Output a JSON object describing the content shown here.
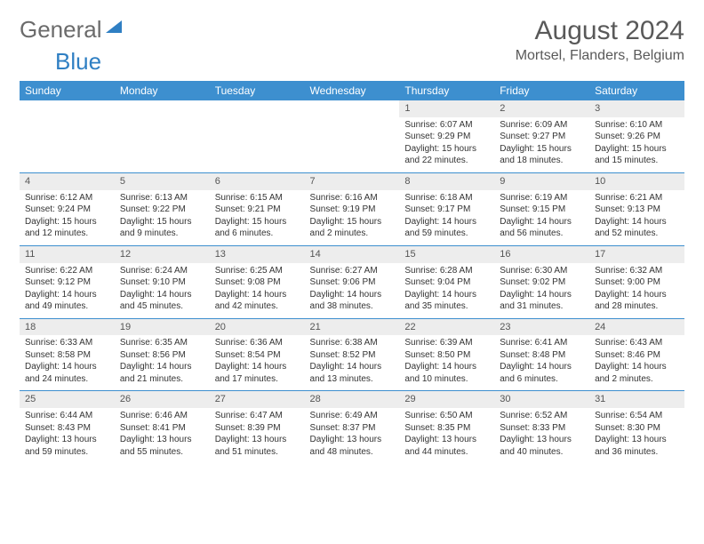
{
  "logo": {
    "part1": "General",
    "part2": "Blue"
  },
  "title": "August 2024",
  "location": "Mortsel, Flanders, Belgium",
  "colors": {
    "header_bg": "#3d8fcf",
    "header_text": "#ffffff",
    "daynum_bg": "#ededed",
    "row_border": "#3d8fcf",
    "text": "#333333",
    "title_text": "#595959"
  },
  "day_headers": [
    "Sunday",
    "Monday",
    "Tuesday",
    "Wednesday",
    "Thursday",
    "Friday",
    "Saturday"
  ],
  "weeks": [
    [
      {
        "empty": true
      },
      {
        "empty": true
      },
      {
        "empty": true
      },
      {
        "empty": true
      },
      {
        "day": "1",
        "sunrise": "6:07 AM",
        "sunset": "9:29 PM",
        "daylight": "15 hours and 22 minutes."
      },
      {
        "day": "2",
        "sunrise": "6:09 AM",
        "sunset": "9:27 PM",
        "daylight": "15 hours and 18 minutes."
      },
      {
        "day": "3",
        "sunrise": "6:10 AM",
        "sunset": "9:26 PM",
        "daylight": "15 hours and 15 minutes."
      }
    ],
    [
      {
        "day": "4",
        "sunrise": "6:12 AM",
        "sunset": "9:24 PM",
        "daylight": "15 hours and 12 minutes."
      },
      {
        "day": "5",
        "sunrise": "6:13 AM",
        "sunset": "9:22 PM",
        "daylight": "15 hours and 9 minutes."
      },
      {
        "day": "6",
        "sunrise": "6:15 AM",
        "sunset": "9:21 PM",
        "daylight": "15 hours and 6 minutes."
      },
      {
        "day": "7",
        "sunrise": "6:16 AM",
        "sunset": "9:19 PM",
        "daylight": "15 hours and 2 minutes."
      },
      {
        "day": "8",
        "sunrise": "6:18 AM",
        "sunset": "9:17 PM",
        "daylight": "14 hours and 59 minutes."
      },
      {
        "day": "9",
        "sunrise": "6:19 AM",
        "sunset": "9:15 PM",
        "daylight": "14 hours and 56 minutes."
      },
      {
        "day": "10",
        "sunrise": "6:21 AM",
        "sunset": "9:13 PM",
        "daylight": "14 hours and 52 minutes."
      }
    ],
    [
      {
        "day": "11",
        "sunrise": "6:22 AM",
        "sunset": "9:12 PM",
        "daylight": "14 hours and 49 minutes."
      },
      {
        "day": "12",
        "sunrise": "6:24 AM",
        "sunset": "9:10 PM",
        "daylight": "14 hours and 45 minutes."
      },
      {
        "day": "13",
        "sunrise": "6:25 AM",
        "sunset": "9:08 PM",
        "daylight": "14 hours and 42 minutes."
      },
      {
        "day": "14",
        "sunrise": "6:27 AM",
        "sunset": "9:06 PM",
        "daylight": "14 hours and 38 minutes."
      },
      {
        "day": "15",
        "sunrise": "6:28 AM",
        "sunset": "9:04 PM",
        "daylight": "14 hours and 35 minutes."
      },
      {
        "day": "16",
        "sunrise": "6:30 AM",
        "sunset": "9:02 PM",
        "daylight": "14 hours and 31 minutes."
      },
      {
        "day": "17",
        "sunrise": "6:32 AM",
        "sunset": "9:00 PM",
        "daylight": "14 hours and 28 minutes."
      }
    ],
    [
      {
        "day": "18",
        "sunrise": "6:33 AM",
        "sunset": "8:58 PM",
        "daylight": "14 hours and 24 minutes."
      },
      {
        "day": "19",
        "sunrise": "6:35 AM",
        "sunset": "8:56 PM",
        "daylight": "14 hours and 21 minutes."
      },
      {
        "day": "20",
        "sunrise": "6:36 AM",
        "sunset": "8:54 PM",
        "daylight": "14 hours and 17 minutes."
      },
      {
        "day": "21",
        "sunrise": "6:38 AM",
        "sunset": "8:52 PM",
        "daylight": "14 hours and 13 minutes."
      },
      {
        "day": "22",
        "sunrise": "6:39 AM",
        "sunset": "8:50 PM",
        "daylight": "14 hours and 10 minutes."
      },
      {
        "day": "23",
        "sunrise": "6:41 AM",
        "sunset": "8:48 PM",
        "daylight": "14 hours and 6 minutes."
      },
      {
        "day": "24",
        "sunrise": "6:43 AM",
        "sunset": "8:46 PM",
        "daylight": "14 hours and 2 minutes."
      }
    ],
    [
      {
        "day": "25",
        "sunrise": "6:44 AM",
        "sunset": "8:43 PM",
        "daylight": "13 hours and 59 minutes."
      },
      {
        "day": "26",
        "sunrise": "6:46 AM",
        "sunset": "8:41 PM",
        "daylight": "13 hours and 55 minutes."
      },
      {
        "day": "27",
        "sunrise": "6:47 AM",
        "sunset": "8:39 PM",
        "daylight": "13 hours and 51 minutes."
      },
      {
        "day": "28",
        "sunrise": "6:49 AM",
        "sunset": "8:37 PM",
        "daylight": "13 hours and 48 minutes."
      },
      {
        "day": "29",
        "sunrise": "6:50 AM",
        "sunset": "8:35 PM",
        "daylight": "13 hours and 44 minutes."
      },
      {
        "day": "30",
        "sunrise": "6:52 AM",
        "sunset": "8:33 PM",
        "daylight": "13 hours and 40 minutes."
      },
      {
        "day": "31",
        "sunrise": "6:54 AM",
        "sunset": "8:30 PM",
        "daylight": "13 hours and 36 minutes."
      }
    ]
  ],
  "labels": {
    "sunrise": "Sunrise: ",
    "sunset": "Sunset: ",
    "daylight": "Daylight: "
  }
}
